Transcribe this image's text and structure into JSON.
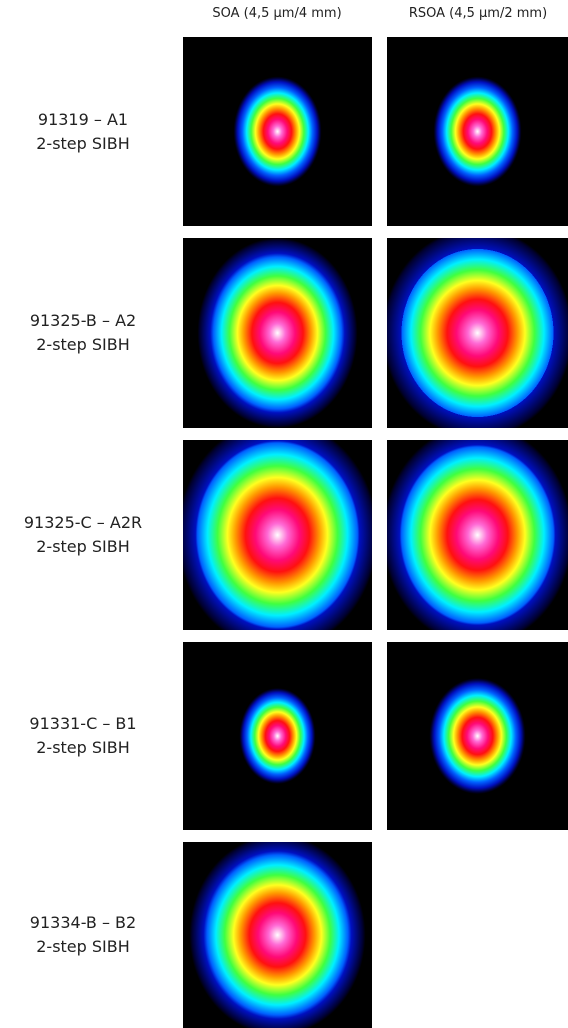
{
  "columns": [
    "SOA (4,5 µm/4 mm)",
    "RSOA (4,5 µm/2 mm)"
  ],
  "rows": [
    {
      "name": "91319 – A1",
      "process": "2-step SIBH"
    },
    {
      "name": "91325-B – A2",
      "process": "2-step SIBH"
    },
    {
      "name": "91325-C – A2R",
      "process": "2-step SIBH"
    },
    {
      "name": "91331-C – B1",
      "process": "2-step SIBH"
    },
    {
      "name": "91334-B – B2",
      "process": "2-step SIBH"
    }
  ]
}
